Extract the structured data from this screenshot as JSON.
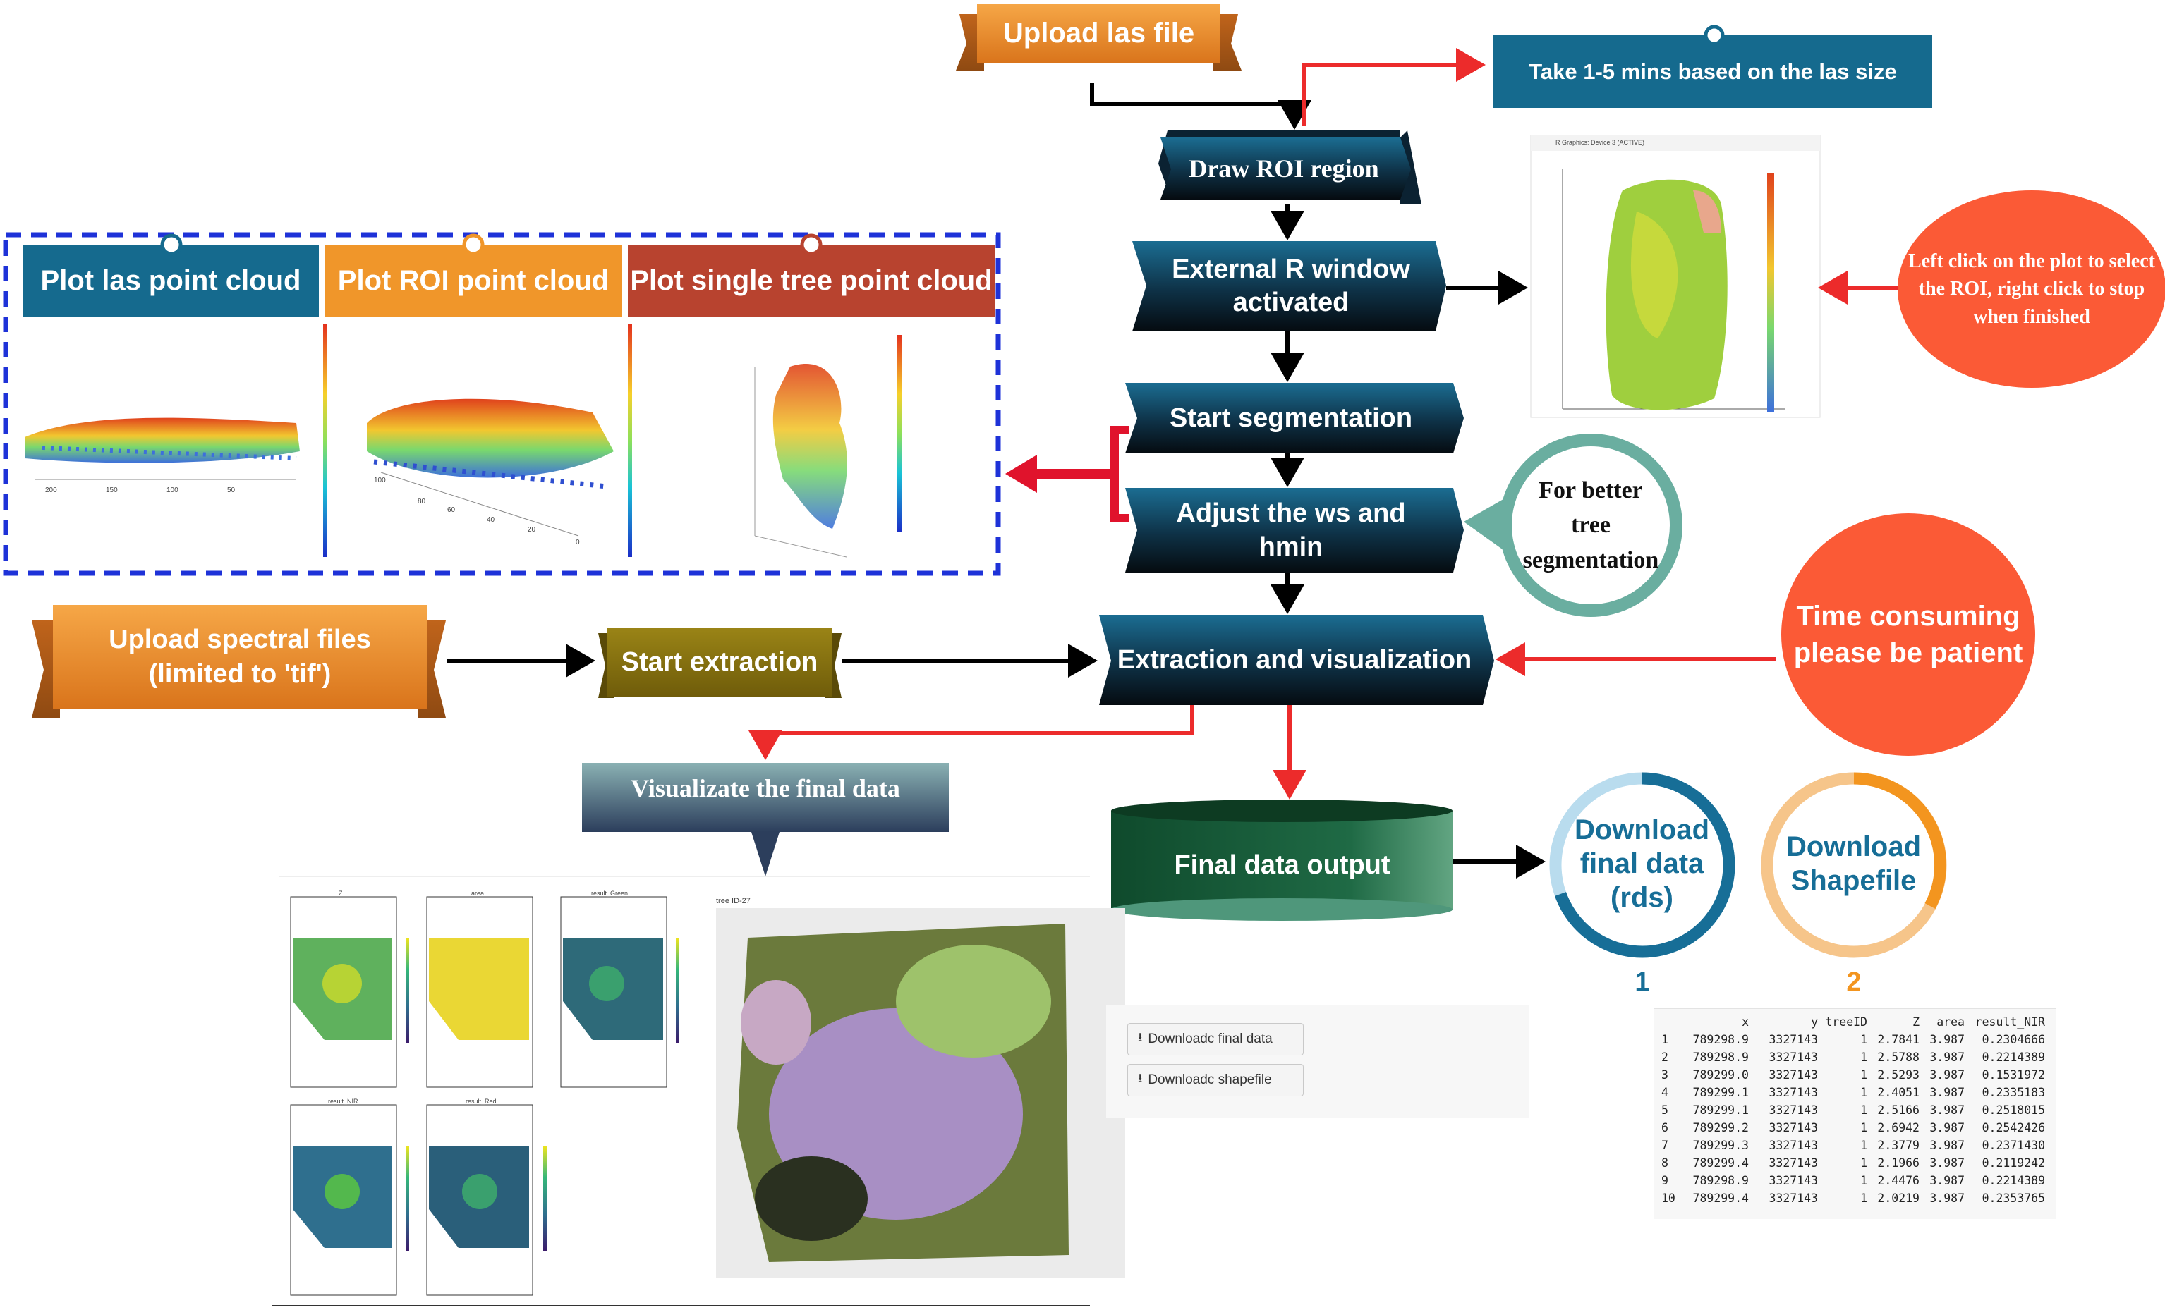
{
  "flow": {
    "upload_las": "Upload las file",
    "take_time": "Take 1-5 mins based on the las size",
    "draw_roi": "Draw ROI region",
    "external_r": "External R window activated",
    "start_segmentation": "Start segmentation",
    "adjust_ws": "Adjust the ws and hmin",
    "extraction_vis": "Extraction and visualization",
    "final_output": "Final data output",
    "upload_spectral": "Upload spectral files (limited to 'tif')",
    "start_extraction": "Start extraction",
    "visualize_final": "Visualizate the final data"
  },
  "notes": {
    "left_click": "Left click on the plot to select the ROI, right click to stop when finished",
    "better_tree": "For better tree segmentation",
    "time_consuming": "Time consuming please be patient"
  },
  "plots": {
    "las": "Plot las point cloud",
    "roi": "Plot ROI point cloud",
    "single_tree": "Plot single tree point cloud"
  },
  "downloads": {
    "final_data": "Download final data (rds)",
    "shapefile": "Download Shapefile",
    "num1": "1",
    "num2": "2",
    "btn_final": "Downloadc final data",
    "btn_shape": "Downloadc shapefile"
  },
  "table": {
    "columns": [
      "",
      "x",
      "y",
      "treeID",
      "Z",
      "area",
      "result_NIR"
    ],
    "rows": [
      [
        "1",
        "789298.9",
        "3327143",
        "1",
        "2.7841",
        "3.987",
        "0.2304666"
      ],
      [
        "2",
        "789298.9",
        "3327143",
        "1",
        "2.5788",
        "3.987",
        "0.2214389"
      ],
      [
        "3",
        "789299.0",
        "3327143",
        "1",
        "2.5293",
        "3.987",
        "0.1531972"
      ],
      [
        "4",
        "789299.1",
        "3327143",
        "1",
        "2.4051",
        "3.987",
        "0.2335183"
      ],
      [
        "5",
        "789299.1",
        "3327143",
        "1",
        "2.5166",
        "3.987",
        "0.2518015"
      ],
      [
        "6",
        "789299.2",
        "3327143",
        "1",
        "2.6942",
        "3.987",
        "0.2542426"
      ],
      [
        "7",
        "789299.3",
        "3327143",
        "1",
        "2.3779",
        "3.987",
        "0.2371430"
      ],
      [
        "8",
        "789299.4",
        "3327143",
        "1",
        "2.1966",
        "3.987",
        "0.2119242"
      ],
      [
        "9",
        "789298.9",
        "3327143",
        "1",
        "2.4476",
        "3.987",
        "0.2214389"
      ],
      [
        "10",
        "789299.4",
        "3327143",
        "1",
        "2.0219",
        "3.987",
        "0.2353765"
      ]
    ]
  },
  "thumbs": {
    "las_ticks": [
      "200",
      "150",
      "100",
      "50"
    ],
    "roi_ticks": [
      "100",
      "80",
      "60",
      "40",
      "20",
      "0"
    ],
    "panel_titles": [
      "Z",
      "area",
      "result_Green",
      "result_NIR",
      "result_Red"
    ],
    "tree_title": "tree ID-27",
    "rwindow_title": "R Graphics: Device 3 (ACTIVE)"
  },
  "colors": {
    "teal_blue": "#156a8e",
    "orange": "#e88a26",
    "brick": "#b8432f",
    "olive": "#8a7512",
    "note_red": "#fb5a36",
    "ring_blue": "#176e97",
    "ring_orange": "#f3951f",
    "dark_green": "#1b5c3a",
    "dash_blue": "#1e32d8"
  }
}
